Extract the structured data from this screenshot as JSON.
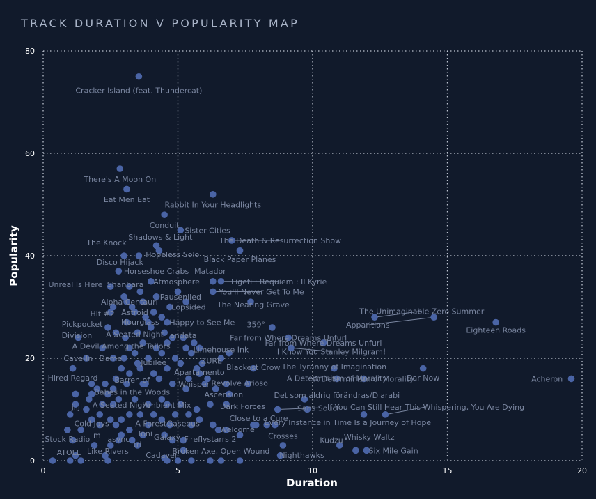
{
  "header": {
    "title": "TRACK DURATION V POPULARITY MAP"
  },
  "chart_data": {
    "type": "scatter",
    "title": "TRACK DURATION V POPULARITY MAP",
    "xlabel": "Duration",
    "ylabel": "Popularity",
    "xlim": [
      0,
      20
    ],
    "ylim": [
      0,
      80
    ],
    "xticks": [
      0,
      5,
      10,
      15,
      20
    ],
    "yticks": [
      0,
      20,
      40,
      60,
      80
    ],
    "grid": true,
    "colors": {
      "background": "#111a2b",
      "point": "#4a64a5",
      "label": "#7a86a0",
      "grid": "#d0d6e2",
      "title": "#a9b4c8"
    },
    "labeled_points": [
      {
        "x": 3.55,
        "y": 75,
        "label": "Cracker Island (feat. Thundercat)",
        "lx": 3.55,
        "ly": 72.3
      },
      {
        "x": 2.85,
        "y": 57,
        "label": "There's A Moon On",
        "lx": 2.85,
        "ly": 55
      },
      {
        "x": 3.1,
        "y": 53,
        "label": "Eat Men Eat",
        "lx": 3.1,
        "ly": 51
      },
      {
        "x": 6.3,
        "y": 52,
        "label": "Rabbit In Your Headlights",
        "lx": 6.3,
        "ly": 50
      },
      {
        "x": 4.5,
        "y": 48,
        "label": "Conduit",
        "lx": 4.5,
        "ly": 46
      },
      {
        "x": 5.1,
        "y": 45,
        "label": "Sister Cities",
        "lx": 6.1,
        "ly": 45
      },
      {
        "x": 4.2,
        "y": 42,
        "label": "Shadows & Light",
        "lx": 4.35,
        "ly": 43.7
      },
      {
        "x": 7,
        "y": 43,
        "label": "The Death & Resurrection Show",
        "lx": 8.8,
        "ly": 43
      },
      {
        "x": 3.55,
        "y": 40,
        "label": "The Knock",
        "lx": 2.35,
        "ly": 42.6
      },
      {
        "x": 4.3,
        "y": 41,
        "label": "Hopeless Solo",
        "lx": 4.8,
        "ly": 40.3
      },
      {
        "x": 7.3,
        "y": 41,
        "label": "Black Paper Planes",
        "lx": 7.3,
        "ly": 39.3
      },
      {
        "x": 3,
        "y": 40,
        "label": "Disco Hijack",
        "lx": 2.85,
        "ly": 38.8
      },
      {
        "x": 2.8,
        "y": 37,
        "label": "Horseshoe Crabs",
        "lx": 4.2,
        "ly": 37
      },
      {
        "x": 6.3,
        "y": 35,
        "label": "Matador",
        "lx": 6.2,
        "ly": 37
      },
      {
        "x": 4,
        "y": 35,
        "label": "Atmosphere",
        "lx": 4.95,
        "ly": 35
      },
      {
        "x": 6.6,
        "y": 35,
        "label": "Ligeti : Requiem : II Kyrie",
        "lx": 8.75,
        "ly": 35
      },
      {
        "x": 2.5,
        "y": 34,
        "label": "Unreal Is Here",
        "lx": 1.2,
        "ly": 34.4
      },
      {
        "x": 3.2,
        "y": 34,
        "label": "Shanbara",
        "lx": 3.05,
        "ly": 34.4
      },
      {
        "x": 6.3,
        "y": 33,
        "label": "You'll Never Get To Me",
        "lx": 8.1,
        "ly": 33
      },
      {
        "x": 4.2,
        "y": 32,
        "label": "Pausenlied",
        "lx": 5.1,
        "ly": 32
      },
      {
        "x": 3.1,
        "y": 31,
        "label": "Alpha Centauri",
        "lx": 3.2,
        "ly": 31
      },
      {
        "x": 7.7,
        "y": 31,
        "label": "The Nearing Grave",
        "lx": 7.8,
        "ly": 30.5
      },
      {
        "x": 4.7,
        "y": 30,
        "label": "Lopsided",
        "lx": 5.4,
        "ly": 30
      },
      {
        "x": 3.4,
        "y": 29,
        "label": "Astroid",
        "lx": 3.4,
        "ly": 29
      },
      {
        "x": 2.5,
        "y": 29,
        "label": "Hit #2",
        "lx": 2.2,
        "ly": 28.7
      },
      {
        "x": 12.3,
        "y": 28,
        "label": "The Unimaginable Zero Summer",
        "lx": 14.05,
        "ly": 29.2
      },
      {
        "x": 14.5,
        "y": 28,
        "label": "Apparitions",
        "lx": 12.05,
        "ly": 26.5
      },
      {
        "x": 16.8,
        "y": 27,
        "label": "Eighteen Roads",
        "lx": 16.8,
        "ly": 25.5
      },
      {
        "x": 3.9,
        "y": 27,
        "label": "Hourglass",
        "lx": 3.6,
        "ly": 27.1
      },
      {
        "x": 4.6,
        "y": 27,
        "label": "Happy to See Me",
        "lx": 5.9,
        "ly": 27
      },
      {
        "x": 2.4,
        "y": 26,
        "label": "Pickpocket",
        "lx": 1.45,
        "ly": 26.7
      },
      {
        "x": 8.5,
        "y": 26,
        "label": "359°",
        "lx": 7.9,
        "ly": 26.6
      },
      {
        "x": 3.05,
        "y": 24,
        "label": "A Seated Night",
        "lx": 3.4,
        "ly": 24.7
      },
      {
        "x": 1.3,
        "y": 24,
        "label": "Division",
        "lx": 1.25,
        "ly": 24.5
      },
      {
        "x": 4.8,
        "y": 24,
        "label": "andata",
        "lx": 5.2,
        "ly": 24.5
      },
      {
        "x": 9.1,
        "y": 24,
        "label": "Far from Where Dreams Unfurl",
        "lx": 9.1,
        "ly": 24
      },
      {
        "x": 10.4,
        "y": 23,
        "label": "Far from Where Dreams Unfurl",
        "lx": 10.4,
        "ly": 23
      },
      {
        "x": 2.2,
        "y": 22,
        "label": "A Devil Among the Tailors",
        "lx": 2.9,
        "ly": 22.4
      },
      {
        "x": 9.2,
        "y": 22,
        "label": "I Know You Stanley Milgram!",
        "lx": 10.7,
        "ly": 21.3
      },
      {
        "x": 5.3,
        "y": 22,
        "label": "Limehouse Ink",
        "lx": 6.6,
        "ly": 21.7
      },
      {
        "x": 1.6,
        "y": 20,
        "label": "Cave-In",
        "lx": 1.3,
        "ly": 20
      },
      {
        "x": 2.6,
        "y": 20,
        "label": "Dame",
        "lx": 2.5,
        "ly": 20
      },
      {
        "x": 3.5,
        "y": 19,
        "label": "Jubilee",
        "lx": 4.1,
        "ly": 19.2
      },
      {
        "x": 6.6,
        "y": 20,
        "label": "ZURE",
        "lx": 6.25,
        "ly": 19.5
      },
      {
        "x": 7.8,
        "y": 18,
        "label": "Blackest Crow",
        "lx": 7.8,
        "ly": 18.2
      },
      {
        "x": 10.8,
        "y": 18,
        "label": "The Tyranny of Imagination",
        "lx": 10.8,
        "ly": 18.4
      },
      {
        "x": 14.1,
        "y": 18,
        "label": "Dar Now",
        "lx": 14.1,
        "ly": 16.2
      },
      {
        "x": 1.1,
        "y": 18,
        "label": "Hired Regard",
        "lx": 1.1,
        "ly": 16.2
      },
      {
        "x": 5.8,
        "y": 17,
        "label": "Apartamento",
        "lx": 5.8,
        "ly": 17.3
      },
      {
        "x": 10.9,
        "y": 16,
        "label": "A Determinism of Morality",
        "lx": 10.9,
        "ly": 16.1
      },
      {
        "x": 11.9,
        "y": 16,
        "label": "A Determinism of Morality",
        "lx": 11.9,
        "ly": 16
      },
      {
        "x": 19.6,
        "y": 16,
        "label": "Acheron",
        "lx": 18.7,
        "ly": 16
      },
      {
        "x": 3.8,
        "y": 15,
        "label": "Barren of",
        "lx": 3.3,
        "ly": 15.8
      },
      {
        "x": 6.8,
        "y": 15,
        "label": "Revolve",
        "lx": 6.8,
        "ly": 15.2
      },
      {
        "x": 7.6,
        "y": 15,
        "label": "Arioso",
        "lx": 7.9,
        "ly": 15.2
      },
      {
        "x": 5.3,
        "y": 14,
        "label": "Whisper",
        "lx": 5.6,
        "ly": 15
      },
      {
        "x": 2.4,
        "y": 13,
        "label": "Babes in the Woods",
        "lx": 3.3,
        "ly": 13.4
      },
      {
        "x": 6.9,
        "y": 13,
        "label": "Ascension",
        "lx": 6.7,
        "ly": 12.9
      },
      {
        "x": 9.7,
        "y": 12,
        "label": "Det som aldrig förändras/Diarabi",
        "lx": 10.9,
        "ly": 12.8
      },
      {
        "x": 2.6,
        "y": 11,
        "label": "A Seated Night",
        "lx": 2.9,
        "ly": 10.9
      },
      {
        "x": 4.6,
        "y": 11,
        "label": "Ambient Mix",
        "lx": 4.6,
        "ly": 10.9
      },
      {
        "x": 6.8,
        "y": 11,
        "label": "Dark Forces",
        "lx": 7.4,
        "ly": 10.6
      },
      {
        "x": 8.7,
        "y": 10,
        "label": "Sans Souci",
        "lx": 10.2,
        "ly": 10.3
      },
      {
        "x": 12.7,
        "y": 9,
        "label": "If You Can Still Hear This Whispering, You Are Dying",
        "lx": 14.2,
        "ly": 10.5
      },
      {
        "x": 1.2,
        "y": 11,
        "label": "jilji",
        "lx": 1.25,
        "ly": 10.5
      },
      {
        "x": 7.8,
        "y": 7,
        "label": "Close to a Cure",
        "lx": 8,
        "ly": 8.3
      },
      {
        "x": 11.9,
        "y": 9,
        "label": "Every Instance in Time Is a Journey of Hope",
        "lx": 11.3,
        "ly": 7.5
      },
      {
        "x": 2.1,
        "y": 7,
        "label": "Cold Joys",
        "lx": 1.8,
        "ly": 7.3
      },
      {
        "x": 3.9,
        "y": 7,
        "label": "A Forest",
        "lx": 4.0,
        "ly": 7.3
      },
      {
        "x": 4.7,
        "y": 7,
        "label": "Gaseous",
        "lx": 5.2,
        "ly": 7.3
      },
      {
        "x": 6.5,
        "y": 6,
        "label": "Welcome",
        "lx": 7.2,
        "ly": 6.1
      },
      {
        "x": 3.2,
        "y": 6,
        "label": "m",
        "lx": 2.0,
        "ly": 5
      },
      {
        "x": 3.7,
        "y": 5,
        "label": "loni",
        "lx": 3.8,
        "ly": 5.3
      },
      {
        "x": 4.5,
        "y": 5,
        "label": "Galaxy",
        "lx": 4.6,
        "ly": 4.6
      },
      {
        "x": 5.2,
        "y": 4,
        "label": "Fireflystarrs 2",
        "lx": 6.2,
        "ly": 4.2
      },
      {
        "x": 8.9,
        "y": 3,
        "label": "Crosses",
        "lx": 8.9,
        "ly": 4.8
      },
      {
        "x": 11,
        "y": 3,
        "label": "Kudzu",
        "lx": 10.7,
        "ly": 4
      },
      {
        "x": 11.6,
        "y": 2,
        "label": "Whisky Waltz",
        "lx": 12.1,
        "ly": 4.6
      },
      {
        "x": 1.1,
        "y": 4,
        "label": "Stock Radio",
        "lx": 0.9,
        "ly": 4.2
      },
      {
        "x": 2.5,
        "y": 3,
        "label": "async",
        "lx": 2.8,
        "ly": 4.2
      },
      {
        "x": 3.5,
        "y": 3,
        "label": "tri",
        "lx": 3.5,
        "ly": 3.2
      },
      {
        "x": 12,
        "y": 2,
        "label": "Six Mile Gain",
        "lx": 13,
        "ly": 2
      },
      {
        "x": 5.2,
        "y": 2,
        "label": "Broken Axe, Open Wound",
        "lx": 6.6,
        "ly": 1.9
      },
      {
        "x": 1.2,
        "y": 1,
        "label": "ATOLL",
        "lx": 0.95,
        "ly": 1.6
      },
      {
        "x": 2.3,
        "y": 1,
        "label": "Like Rivers",
        "lx": 2.4,
        "ly": 1.9
      },
      {
        "x": 8.8,
        "y": 1,
        "label": "Nighthawks",
        "lx": 9.6,
        "ly": 1.1
      },
      {
        "x": 4.5,
        "y": 0.5,
        "label": "Cadaver",
        "lx": 4.4,
        "ly": 1.1
      }
    ],
    "other_points": [
      [
        0.35,
        0
      ],
      [
        1,
        0
      ],
      [
        1.4,
        0
      ],
      [
        2.4,
        0
      ],
      [
        4.6,
        0
      ],
      [
        5,
        0
      ],
      [
        5.5,
        0
      ],
      [
        6.2,
        0
      ],
      [
        6.6,
        0
      ],
      [
        7.3,
        0
      ],
      [
        0.9,
        6
      ],
      [
        1.4,
        6
      ],
      [
        1.8,
        8
      ],
      [
        2.1,
        9
      ],
      [
        2.5,
        8
      ],
      [
        2.9,
        8
      ],
      [
        3.2,
        9
      ],
      [
        3.6,
        9
      ],
      [
        4.1,
        9
      ],
      [
        4.4,
        8
      ],
      [
        4.9,
        9
      ],
      [
        5.4,
        9
      ],
      [
        5.8,
        8
      ],
      [
        1,
        9
      ],
      [
        1.6,
        10
      ],
      [
        2.2,
        11
      ],
      [
        2.8,
        12
      ],
      [
        3.4,
        12
      ],
      [
        3.9,
        11
      ],
      [
        4.4,
        12
      ],
      [
        5.1,
        11
      ],
      [
        5.7,
        10
      ],
      [
        6.2,
        11
      ],
      [
        1.7,
        12
      ],
      [
        2,
        14
      ],
      [
        2.6,
        14
      ],
      [
        3.1,
        15
      ],
      [
        3.7,
        15
      ],
      [
        4.3,
        16
      ],
      [
        4.8,
        15
      ],
      [
        5.4,
        16
      ],
      [
        6,
        15
      ],
      [
        6.4,
        14
      ],
      [
        2.7,
        16
      ],
      [
        3.2,
        17
      ],
      [
        3.6,
        18
      ],
      [
        4.1,
        17
      ],
      [
        4.6,
        18
      ],
      [
        5.1,
        19
      ],
      [
        5.7,
        18
      ],
      [
        6.1,
        16
      ],
      [
        3,
        20
      ],
      [
        3.4,
        21
      ],
      [
        3.9,
        20
      ],
      [
        4.4,
        21
      ],
      [
        4.9,
        20
      ],
      [
        5.5,
        21
      ],
      [
        5.9,
        19
      ],
      [
        6.9,
        21
      ],
      [
        3.2,
        22
      ],
      [
        3.7,
        23
      ],
      [
        4.2,
        22
      ],
      [
        4.6,
        23
      ],
      [
        5.2,
        24
      ],
      [
        5.6,
        23
      ],
      [
        5.8,
        22
      ],
      [
        2.7,
        25
      ],
      [
        3.5,
        25
      ],
      [
        4,
        26
      ],
      [
        4.5,
        25
      ],
      [
        3.1,
        27
      ],
      [
        3.8,
        28
      ],
      [
        4.4,
        28
      ],
      [
        2.6,
        30
      ],
      [
        3.3,
        30
      ],
      [
        3.7,
        31
      ],
      [
        4.1,
        29
      ],
      [
        3,
        32
      ],
      [
        3.6,
        33
      ],
      [
        5,
        33
      ],
      [
        5.3,
        31
      ],
      [
        7.9,
        7
      ],
      [
        8.3,
        7
      ],
      [
        8.6,
        7
      ],
      [
        9.8,
        10
      ],
      [
        7.3,
        5
      ],
      [
        6.8,
        6
      ],
      [
        3.3,
        4
      ],
      [
        2.8,
        4
      ],
      [
        2.7,
        7
      ],
      [
        2.9,
        5
      ],
      [
        5.5,
        7
      ],
      [
        1.9,
        3
      ],
      [
        4.8,
        4
      ],
      [
        6.3,
        7
      ],
      [
        1.2,
        13
      ],
      [
        1.8,
        13
      ],
      [
        2.3,
        15
      ],
      [
        2.9,
        18
      ],
      [
        1.8,
        15
      ]
    ]
  }
}
